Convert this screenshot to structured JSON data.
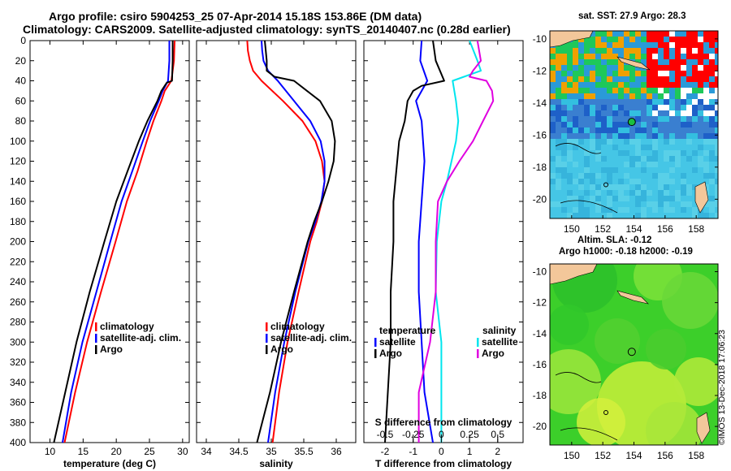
{
  "titles": {
    "line1": "Argo profile: csiro 5904253_25 07-Apr-2014 15.18S 153.86E (DM data)",
    "line2": "Climatology: CARS2009. Satellite-adjusted climatology: synTS_20140407.nc (0.28d earlier)"
  },
  "colors": {
    "climatology": "#ff0000",
    "satellite": "#0000ff",
    "argo": "#000000",
    "sal_satellite": "#00e5ee",
    "sal_argo": "#e000e0"
  },
  "map1": {
    "title": "sat. SST: 27.9 Argo: 28.3",
    "x_ticks": [
      "150",
      "152",
      "154",
      "156",
      "158"
    ],
    "y_ticks": [
      "-10",
      "-12",
      "-14",
      "-16",
      "-18",
      "-20"
    ]
  },
  "map2": {
    "title_line1": "Altim. SLA: -0.12",
    "title_line2": "Argo h1000: -0.18 h2000: -0.19",
    "x_ticks": [
      "150",
      "152",
      "154",
      "156",
      "158"
    ],
    "y_ticks": [
      "-10",
      "-12",
      "-14",
      "-16",
      "-18",
      "-20"
    ]
  },
  "credit": "©IMOS 13-Dec-2018 17:06:23",
  "chart_data": [
    {
      "type": "line",
      "panel": "temperature",
      "xlabel": "temperature (deg C)",
      "ylabel": "",
      "xlim": [
        7,
        31
      ],
      "ylim": [
        400,
        0
      ],
      "x_ticks": [
        10,
        15,
        20,
        25,
        30
      ],
      "y_ticks": [
        0,
        20,
        40,
        60,
        80,
        100,
        120,
        140,
        160,
        180,
        200,
        220,
        240,
        260,
        280,
        300,
        320,
        340,
        360,
        380,
        400
      ],
      "legend": [
        "climatology",
        "satellite-adj. clim.",
        "Argo"
      ],
      "series": [
        {
          "name": "climatology",
          "color": "#ff0000",
          "depth": [
            0,
            20,
            40,
            50,
            60,
            80,
            100,
            130,
            160,
            200,
            250,
            300,
            350,
            400
          ],
          "values": [
            28.8,
            28.7,
            28.3,
            27.3,
            26.8,
            25.6,
            24.6,
            23.2,
            21.6,
            19.9,
            17.7,
            15.6,
            13.8,
            12.2
          ]
        },
        {
          "name": "satellite-adj. clim.",
          "color": "#0000ff",
          "depth": [
            0,
            20,
            40,
            50,
            60,
            80,
            100,
            130,
            160,
            200,
            250,
            300,
            350,
            400
          ],
          "values": [
            28.0,
            28.0,
            27.8,
            27.0,
            26.4,
            25.1,
            24.0,
            22.4,
            20.8,
            19.1,
            17.0,
            14.9,
            13.2,
            11.9
          ]
        },
        {
          "name": "Argo",
          "color": "#000000",
          "depth": [
            0,
            20,
            40,
            42,
            50,
            60,
            80,
            100,
            130,
            160,
            200,
            250,
            300,
            350,
            400
          ],
          "values": [
            28.5,
            28.5,
            28.4,
            27.6,
            26.8,
            26.2,
            24.7,
            23.4,
            21.7,
            20.0,
            18.2,
            16.0,
            14.0,
            12.3,
            10.6
          ]
        }
      ]
    },
    {
      "type": "line",
      "panel": "salinity",
      "xlabel": "salinity",
      "ylabel": "",
      "xlim": [
        33.85,
        36.3
      ],
      "ylim": [
        400,
        0
      ],
      "x_ticks": [
        34,
        34.5,
        35,
        35.5,
        36
      ],
      "x_tick_labels": [
        "34",
        "34.5",
        "35",
        "35.5",
        "36"
      ],
      "legend": [
        "climatology",
        "satellite-adj. clim.",
        "Argo"
      ],
      "series": [
        {
          "name": "climatology",
          "color": "#ff0000",
          "depth": [
            0,
            10,
            20,
            30,
            40,
            60,
            80,
            100,
            120,
            140,
            160,
            180,
            200,
            250,
            300,
            350,
            400
          ],
          "values": [
            34.63,
            34.64,
            34.67,
            34.72,
            34.85,
            35.18,
            35.48,
            35.68,
            35.78,
            35.82,
            35.78,
            35.7,
            35.6,
            35.42,
            35.25,
            35.12,
            35.02
          ]
        },
        {
          "name": "satellite-adj. clim.",
          "color": "#0000ff",
          "depth": [
            0,
            10,
            20,
            30,
            40,
            60,
            80,
            100,
            120,
            140,
            160,
            180,
            200,
            250,
            300,
            350,
            400
          ],
          "values": [
            34.85,
            34.86,
            34.88,
            34.95,
            35.1,
            35.35,
            35.6,
            35.76,
            35.82,
            35.82,
            35.77,
            35.68,
            35.57,
            35.37,
            35.2,
            35.06,
            34.95
          ]
        },
        {
          "name": "Argo",
          "color": "#000000",
          "depth": [
            0,
            20,
            30,
            36,
            40,
            50,
            60,
            80,
            100,
            120,
            140,
            160,
            180,
            200,
            250,
            300,
            350,
            400
          ],
          "values": [
            34.9,
            34.93,
            34.93,
            35.05,
            35.35,
            35.55,
            35.75,
            35.93,
            35.98,
            35.96,
            35.88,
            35.78,
            35.66,
            35.56,
            35.35,
            35.15,
            34.98,
            34.78
          ]
        }
      ]
    },
    {
      "type": "line",
      "panel": "differences",
      "xlabel": "T difference from climatology",
      "xlabel_top": "S difference from climatology",
      "xlim": [
        -2.75,
        2.9
      ],
      "ylim": [
        400,
        0
      ],
      "x_ticks": [
        -2,
        -1,
        0,
        1,
        2
      ],
      "x_tick_labels": [
        "-2",
        "-1",
        "0",
        "1",
        "2"
      ],
      "s_x_ticks": [
        "-0.5",
        "-0.25",
        "0",
        "0.25",
        "0.5"
      ],
      "legend_temperature": {
        "title": "temperature",
        "items": [
          "satellite",
          "Argo"
        ]
      },
      "legend_salinity": {
        "title": "salinity",
        "items": [
          "satellite",
          "Argo"
        ]
      },
      "series": [
        {
          "name": "temperature satellite",
          "color": "#0000ff",
          "depth": [
            0,
            20,
            40,
            60,
            80,
            120,
            160,
            200,
            250,
            300,
            350,
            400
          ],
          "values": [
            -0.7,
            -0.75,
            -0.5,
            -0.9,
            -0.7,
            -0.6,
            -0.7,
            -0.8,
            -0.8,
            -0.7,
            -0.6,
            -0.3
          ]
        },
        {
          "name": "temperature Argo",
          "color": "#000000",
          "depth": [
            0,
            20,
            40,
            45,
            50,
            60,
            80,
            100,
            130,
            160,
            200,
            250,
            300,
            350,
            400
          ],
          "values": [
            -0.3,
            -0.2,
            0.1,
            -0.7,
            -1.0,
            -1.2,
            -1.3,
            -1.5,
            -1.6,
            -1.7,
            -1.7,
            -1.8,
            -1.8,
            -1.9,
            -2.0
          ]
        },
        {
          "name": "salinity satellite",
          "color": "#00e5ee",
          "depth": [
            0,
            20,
            30,
            40,
            60,
            80,
            100,
            120,
            140,
            160,
            200,
            250,
            300,
            350,
            400
          ],
          "values": [
            0.25,
            0.32,
            0.35,
            0.1,
            0.13,
            0.15,
            0.13,
            0.09,
            0.05,
            0.0,
            -0.04,
            -0.05,
            0.0,
            0.0,
            0.0
          ]
        },
        {
          "name": "salinity Argo",
          "color": "#e000e0",
          "depth": [
            0,
            20,
            30,
            36,
            40,
            50,
            60,
            80,
            100,
            120,
            140,
            160,
            200,
            250,
            300,
            350,
            400
          ],
          "values": [
            0.32,
            0.35,
            0.28,
            0.25,
            0.4,
            0.45,
            0.46,
            0.37,
            0.28,
            0.16,
            0.05,
            -0.03,
            -0.05,
            -0.05,
            -0.1,
            -0.2,
            -0.2
          ]
        }
      ]
    }
  ]
}
